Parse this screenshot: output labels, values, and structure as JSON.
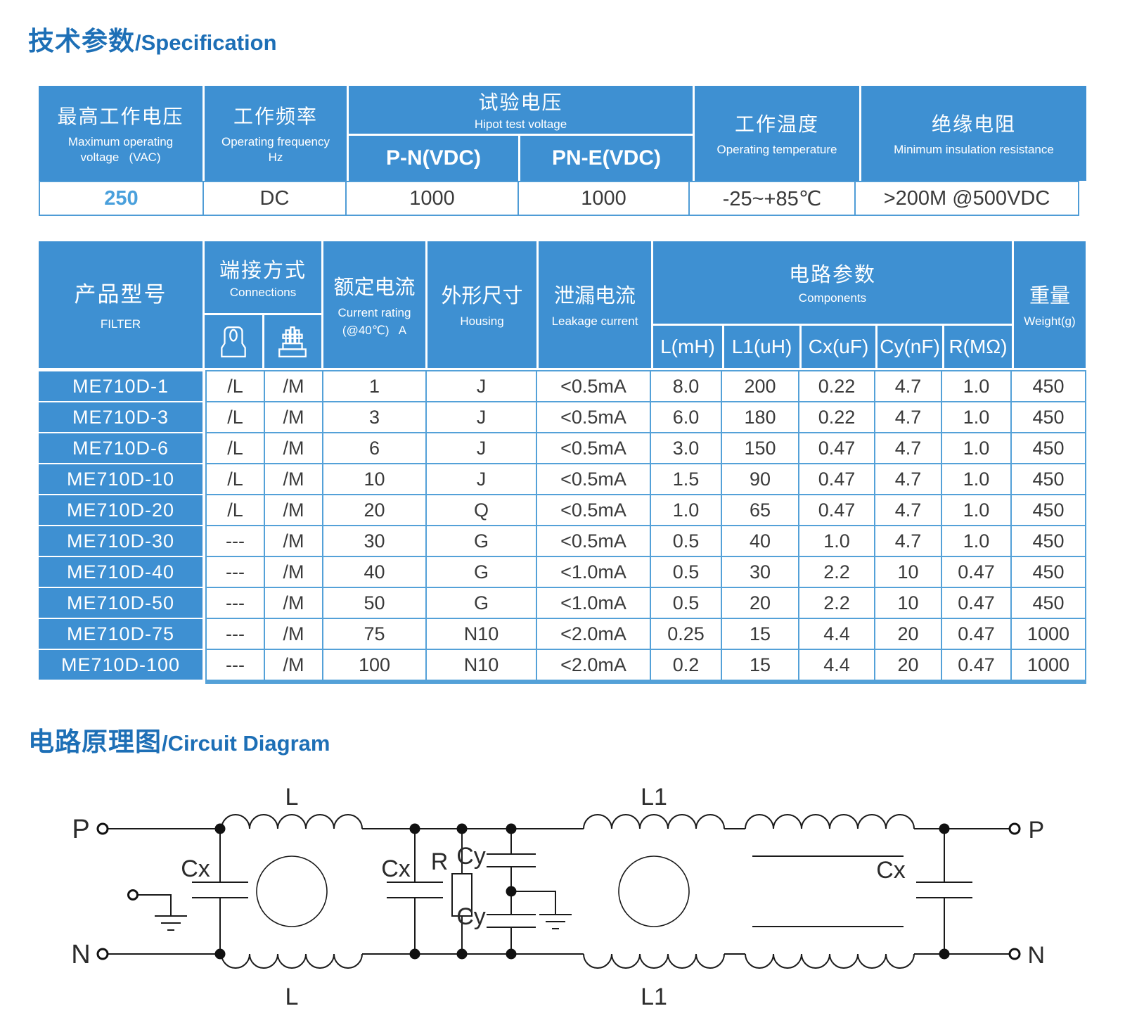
{
  "titles": {
    "spec_zh": "技术参数",
    "spec_en": "/Specification",
    "circuit_zh": "电路原理图",
    "circuit_en": "/Circuit Diagram"
  },
  "colors": {
    "header_blue": "#3E90D2",
    "grid_border_blue": "#54A1D8",
    "title_blue": "#1D6FB6",
    "accent_value_blue": "#4AA0DC",
    "text_dark": "#3A3A3A",
    "schematic_line": "#1A1A1A"
  },
  "spec_table": {
    "max_voltage": {
      "zh": "最高工作电压",
      "en1": "Maximum operating",
      "en2": "voltage   (VAC)"
    },
    "frequency": {
      "zh": "工作频率",
      "en1": "Operating frequency",
      "en2": "Hz"
    },
    "hipot": {
      "zh": "试验电压",
      "en": "Hipot test voltage",
      "sub1": "P-N(VDC)",
      "sub2": "PN-E(VDC)"
    },
    "temperature": {
      "zh": "工作温度",
      "en": "Operating temperature"
    },
    "insulation": {
      "zh": "绝缘电阻",
      "en": "Minimum insulation resistance"
    },
    "values": {
      "voltage": "250",
      "frequency": "DC",
      "pn": "1000",
      "pne": "1000",
      "temp": "-25~+85℃",
      "resistance": ">200M @500VDC"
    }
  },
  "filter_table": {
    "header": {
      "model": {
        "zh": "产品型号",
        "en": "FILTER"
      },
      "connections": {
        "zh": "端接方式",
        "en": "Connections",
        "icon1": "lug-terminal-icon",
        "icon2": "terminal-block-icon"
      },
      "current": {
        "zh": "额定电流",
        "en1": "Current rating",
        "en2": "(@40℃)   A"
      },
      "housing": {
        "zh": "外形尺寸",
        "en": "Housing"
      },
      "leakage": {
        "zh": "泄漏电流",
        "en": "Leakage current"
      },
      "components": {
        "zh": "电路参数",
        "en": "Components",
        "sub": [
          "L(mH)",
          "L1(uH)",
          "Cx(uF)",
          "Cy(nF)",
          "R(MΩ)"
        ]
      },
      "weight": {
        "zh": "重量",
        "en": "Weight(g)"
      }
    },
    "rows": [
      [
        "ME710D-1",
        "/L",
        "/M",
        "1",
        "J",
        "<0.5mA",
        "8.0",
        "200",
        "0.22",
        "4.7",
        "1.0",
        "450"
      ],
      [
        "ME710D-3",
        "/L",
        "/M",
        "3",
        "J",
        "<0.5mA",
        "6.0",
        "180",
        "0.22",
        "4.7",
        "1.0",
        "450"
      ],
      [
        "ME710D-6",
        "/L",
        "/M",
        "6",
        "J",
        "<0.5mA",
        "3.0",
        "150",
        "0.47",
        "4.7",
        "1.0",
        "450"
      ],
      [
        "ME710D-10",
        "/L",
        "/M",
        "10",
        "J",
        "<0.5mA",
        "1.5",
        "90",
        "0.47",
        "4.7",
        "1.0",
        "450"
      ],
      [
        "ME710D-20",
        "/L",
        "/M",
        "20",
        "Q",
        "<0.5mA",
        "1.0",
        "65",
        "0.47",
        "4.7",
        "1.0",
        "450"
      ],
      [
        "ME710D-30",
        "---",
        "/M",
        "30",
        "G",
        "<0.5mA",
        "0.5",
        "40",
        "1.0",
        "4.7",
        "1.0",
        "450"
      ],
      [
        "ME710D-40",
        "---",
        "/M",
        "40",
        "G",
        "<1.0mA",
        "0.5",
        "30",
        "2.2",
        "10",
        "0.47",
        "450"
      ],
      [
        "ME710D-50",
        "---",
        "/M",
        "50",
        "G",
        "<1.0mA",
        "0.5",
        "20",
        "2.2",
        "10",
        "0.47",
        "450"
      ],
      [
        "ME710D-75",
        "---",
        "/M",
        "75",
        "N10",
        "<2.0mA",
        "0.25",
        "15",
        "4.4",
        "20",
        "0.47",
        "1000"
      ],
      [
        "ME710D-100",
        "---",
        "/M",
        "100",
        "N10",
        "<2.0mA",
        "0.2",
        "15",
        "4.4",
        "20",
        "0.47",
        "1000"
      ]
    ]
  },
  "circuit": {
    "terminals": {
      "p": "P",
      "n": "N",
      "p_out": "P′",
      "n_out": "N′"
    },
    "labels": {
      "cx": "Cx",
      "cy": "Cy",
      "r": "R",
      "l": "L",
      "l1": "L1"
    }
  }
}
